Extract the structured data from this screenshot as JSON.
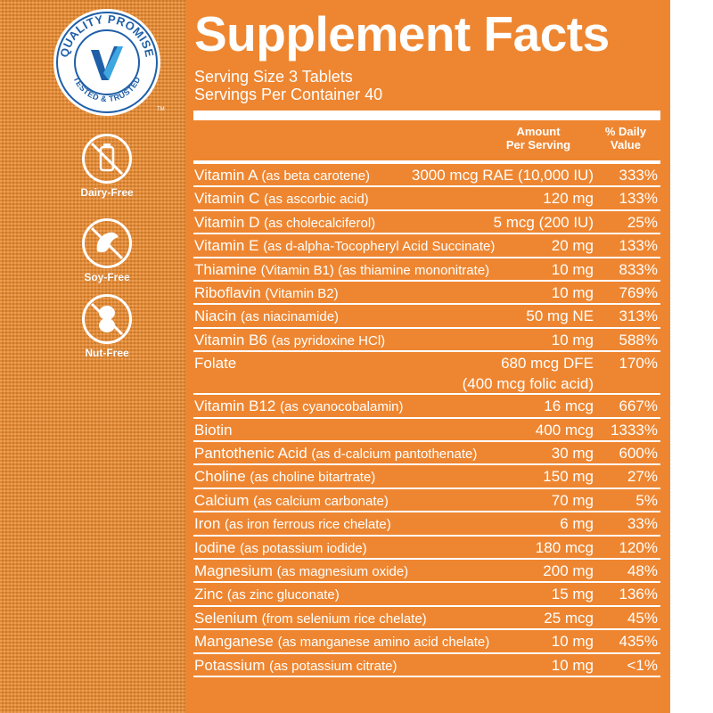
{
  "left_strip": {
    "seal": {
      "top_text": "QUALITY PROMISE",
      "bottom_text": "TESTED & TRUSTED",
      "tm": "TM",
      "icon": "v-check-logo-icon"
    },
    "badges": [
      {
        "label": "Dairy-Free",
        "icon": "no-dairy-icon"
      },
      {
        "label": "Soy-Free",
        "icon": "no-soy-icon"
      },
      {
        "label": "Nut-Free",
        "icon": "no-nut-icon"
      }
    ]
  },
  "panel": {
    "title": "Supplement Facts",
    "serving_size": "Serving Size 3 Tablets",
    "servings_per_container": "Servings Per Container 40",
    "header_amount": [
      "Amount",
      "Per Serving"
    ],
    "header_dv": [
      "% Daily",
      "Value"
    ],
    "colors": {
      "panel": "#ee8631",
      "text": "#ffffff",
      "strip": "#ec8a2d",
      "seal_blue": "#1f5fa8"
    },
    "rows": [
      {
        "name": "Vitamin A",
        "desc": "(as beta carotene)",
        "amount": "3000 mcg RAE (10,000 IU)",
        "dv": "333%"
      },
      {
        "name": "Vitamin C",
        "desc": "(as ascorbic acid)",
        "amount": "120 mg",
        "dv": "133%"
      },
      {
        "name": "Vitamin D",
        "desc": "(as cholecalciferol)",
        "amount": "5 mcg (200 IU)",
        "dv": "25%"
      },
      {
        "name": "Vitamin E",
        "desc": "(as d-alpha-Tocopheryl Acid Succinate)",
        "amount": "20 mg",
        "dv": "133%"
      },
      {
        "name": "Thiamine",
        "desc": "(Vitamin B1) (as thiamine mononitrate)",
        "amount": "10 mg",
        "dv": "833%"
      },
      {
        "name": "Riboflavin",
        "desc": "(Vitamin B2)",
        "amount": "10 mg",
        "dv": "769%"
      },
      {
        "name": "Niacin",
        "desc": "(as niacinamide)",
        "amount": "50 mg NE",
        "dv": "313%"
      },
      {
        "name": "Vitamin B6",
        "desc": "(as pyridoxine HCl)",
        "amount": "10 mg",
        "dv": "588%"
      },
      {
        "name": "Folate",
        "desc": "",
        "amount": "680 mcg DFE",
        "amount2": "(400 mcg folic acid)",
        "dv": "170%"
      },
      {
        "name": "Vitamin B12",
        "desc": "(as cyanocobalamin)",
        "amount": "16 mcg",
        "dv": "667%"
      },
      {
        "name": "Biotin",
        "desc": "",
        "amount": "400 mcg",
        "dv": "1333%"
      },
      {
        "name": "Pantothenic Acid",
        "desc": "(as d-calcium pantothenate)",
        "amount": "30 mg",
        "dv": "600%"
      },
      {
        "name": "Choline",
        "desc": "(as choline bitartrate)",
        "amount": "150 mg",
        "dv": "27%"
      },
      {
        "name": "Calcium",
        "desc": "(as calcium carbonate)",
        "amount": "70 mg",
        "dv": "5%"
      },
      {
        "name": "Iron",
        "desc": "(as iron ferrous rice chelate)",
        "amount": "6 mg",
        "dv": "33%"
      },
      {
        "name": "Iodine",
        "desc": "(as potassium iodide)",
        "amount": "180 mcg",
        "dv": "120%"
      },
      {
        "name": "Magnesium",
        "desc": "(as magnesium oxide)",
        "amount": "200 mg",
        "dv": "48%"
      },
      {
        "name": "Zinc",
        "desc": "(as zinc gluconate)",
        "amount": "15 mg",
        "dv": "136%"
      },
      {
        "name": "Selenium",
        "desc": "(from selenium rice chelate)",
        "amount": "25 mcg",
        "dv": "45%"
      },
      {
        "name": "Manganese",
        "desc": "(as manganese amino acid chelate)",
        "amount": "10 mg",
        "dv": "435%"
      },
      {
        "name": "Potassium",
        "desc": "(as potassium citrate)",
        "amount": "10 mg",
        "dv": "<1%"
      }
    ]
  }
}
